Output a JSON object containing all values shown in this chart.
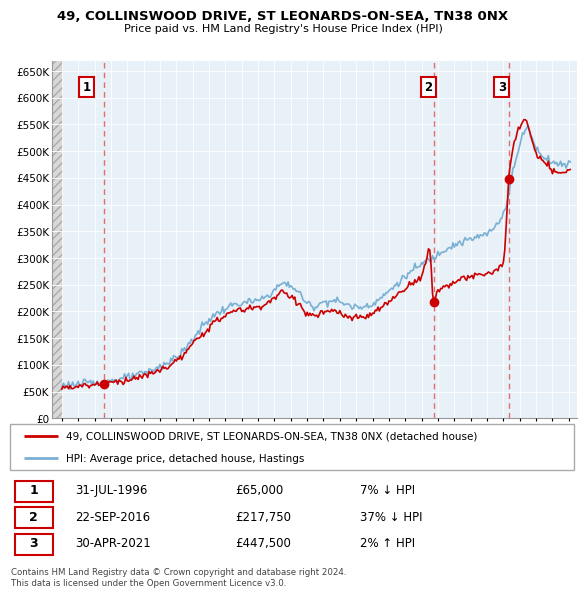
{
  "title": "49, COLLINSWOOD DRIVE, ST LEONARDS-ON-SEA, TN38 0NX",
  "subtitle": "Price paid vs. HM Land Registry's House Price Index (HPI)",
  "ylabel_ticks": [
    "£0",
    "£50K",
    "£100K",
    "£150K",
    "£200K",
    "£250K",
    "£300K",
    "£350K",
    "£400K",
    "£450K",
    "£500K",
    "£550K",
    "£600K",
    "£650K"
  ],
  "ytick_values": [
    0,
    50000,
    100000,
    150000,
    200000,
    250000,
    300000,
    350000,
    400000,
    450000,
    500000,
    550000,
    600000,
    650000
  ],
  "year_start": 1994,
  "year_end": 2025,
  "transactions": [
    {
      "label": "1",
      "date": 1996.58,
      "price": 65000
    },
    {
      "label": "2",
      "date": 2016.73,
      "price": 217750
    },
    {
      "label": "3",
      "date": 2021.33,
      "price": 447500
    }
  ],
  "sale_color": "#cc0000",
  "hpi_color": "#7ab0d4",
  "dashed_line_color": "#e06060",
  "grid_color": "#c8d8e8",
  "chart_bg": "#e8f0f8",
  "hatch_color": "#c8c8c8",
  "legend_entries": [
    "49, COLLINSWOOD DRIVE, ST LEONARDS-ON-SEA, TN38 0NX (detached house)",
    "HPI: Average price, detached house, Hastings"
  ],
  "table_rows": [
    {
      "num": "1",
      "date": "31-JUL-1996",
      "price": "£65,000",
      "hpi": "7% ↓ HPI"
    },
    {
      "num": "2",
      "date": "22-SEP-2016",
      "price": "£217,750",
      "hpi": "37% ↓ HPI"
    },
    {
      "num": "3",
      "date": "30-APR-2021",
      "price": "£447,500",
      "hpi": "2% ↑ HPI"
    }
  ],
  "footnote": "Contains HM Land Registry data © Crown copyright and database right 2024.\nThis data is licensed under the Open Government Licence v3.0."
}
